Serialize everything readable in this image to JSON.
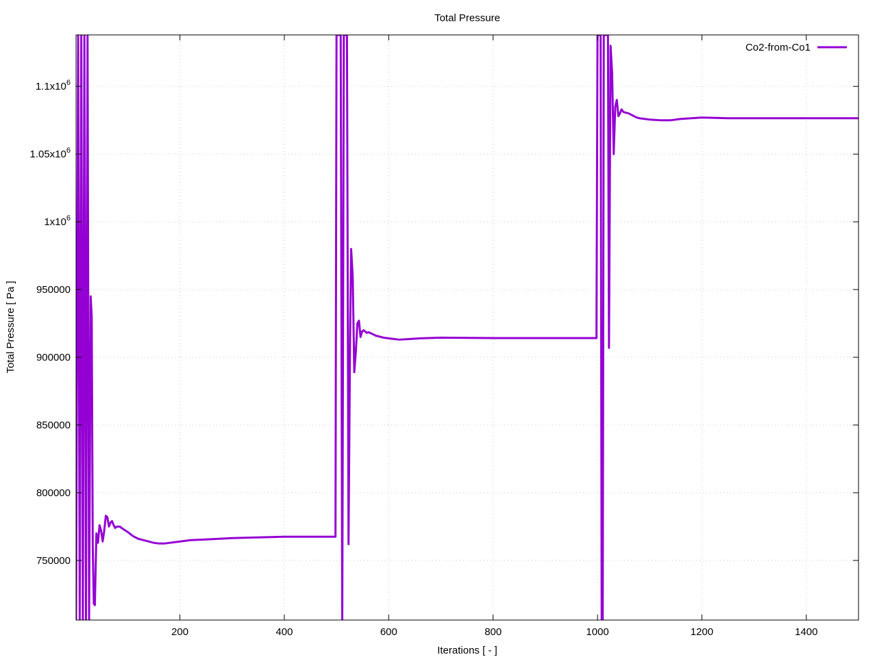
{
  "chart_data": {
    "type": "line",
    "title": "Total Pressure",
    "xlabel": "Iterations [ - ]",
    "ylabel": "Total Pressure [ Pa ]",
    "xlim": [
      1,
      1500
    ],
    "ylim": [
      706000,
      1138000
    ],
    "grid": true,
    "legend_position": "top-right",
    "x_ticks": [
      {
        "value": 200,
        "label": "200"
      },
      {
        "value": 400,
        "label": "400"
      },
      {
        "value": 600,
        "label": "600"
      },
      {
        "value": 800,
        "label": "800"
      },
      {
        "value": 1000,
        "label": "1000"
      },
      {
        "value": 1200,
        "label": "1200"
      },
      {
        "value": 1400,
        "label": "1400"
      }
    ],
    "y_ticks": [
      {
        "value": 750000,
        "label": "750000"
      },
      {
        "value": 800000,
        "label": "800000"
      },
      {
        "value": 850000,
        "label": "850000"
      },
      {
        "value": 900000,
        "label": "900000"
      },
      {
        "value": 950000,
        "label": "950000"
      },
      {
        "value": 1000000,
        "label": "1x10",
        "sup": "6"
      },
      {
        "value": 1050000,
        "label": "1.05x10",
        "sup": "6"
      },
      {
        "value": 1100000,
        "label": "1.1x10",
        "sup": "6"
      }
    ],
    "series": [
      {
        "name": "Co2-from-Co1",
        "color": "#9400d3",
        "x": [
          1,
          5,
          8,
          11,
          14,
          17,
          20,
          23,
          26,
          29,
          31,
          33,
          35,
          37,
          40,
          43,
          46,
          49,
          52,
          55,
          58,
          61,
          64,
          67,
          70,
          73,
          76,
          79,
          82,
          85,
          88,
          92,
          96,
          100,
          110,
          120,
          130,
          140,
          150,
          160,
          170,
          180,
          200,
          220,
          250,
          300,
          350,
          400,
          450,
          498,
          500,
          502,
          505,
          508,
          511,
          514,
          517,
          520,
          523,
          526,
          528,
          531,
          534,
          537,
          540,
          543,
          546,
          549,
          552,
          555,
          558,
          561,
          564,
          567,
          570,
          575,
          580,
          590,
          600,
          620,
          640,
          660,
          700,
          800,
          900,
          998,
          1000,
          1002,
          1004,
          1006,
          1008,
          1010,
          1012,
          1014,
          1016,
          1018,
          1020,
          1022,
          1025,
          1028,
          1031,
          1034,
          1037,
          1040,
          1043,
          1046,
          1050,
          1055,
          1060,
          1065,
          1070,
          1075,
          1080,
          1090,
          1100,
          1120,
          1140,
          1160,
          1200,
          1250,
          1300,
          1400,
          1500
        ],
        "y": [
          706000,
          1138000,
          706000,
          1138000,
          706000,
          1138000,
          706000,
          1138000,
          706000,
          945000,
          930000,
          760000,
          718000,
          717000,
          770000,
          763000,
          776000,
          772000,
          764000,
          772000,
          783000,
          782000,
          775000,
          778000,
          779000,
          776000,
          774000,
          775000,
          775000,
          775000,
          774000,
          773000,
          772000,
          771000,
          768000,
          766000,
          765000,
          764000,
          763000,
          762500,
          762500,
          763000,
          764000,
          765000,
          765500,
          766500,
          767000,
          767500,
          767500,
          767500,
          1138000,
          1138000,
          1138000,
          1138000,
          706000,
          1138000,
          1138000,
          1138000,
          762000,
          915000,
          980000,
          960000,
          889000,
          904000,
          925000,
          927000,
          915000,
          919000,
          920000,
          919000,
          918000,
          918500,
          918000,
          917500,
          917000,
          916000,
          915500,
          914500,
          914000,
          913000,
          913500,
          914000,
          914500,
          914200,
          914200,
          914200,
          1138000,
          1138000,
          1138000,
          1138000,
          706000,
          706000,
          1138000,
          1138000,
          1138000,
          1138000,
          1138000,
          907000,
          1130000,
          1110000,
          1050000,
          1085000,
          1090000,
          1078000,
          1080000,
          1083000,
          1081000,
          1080500,
          1080000,
          1079000,
          1078000,
          1077000,
          1076500,
          1076000,
          1075500,
          1075000,
          1075000,
          1076000,
          1077000,
          1076500,
          1076500,
          1076500,
          1076500
        ]
      }
    ]
  }
}
